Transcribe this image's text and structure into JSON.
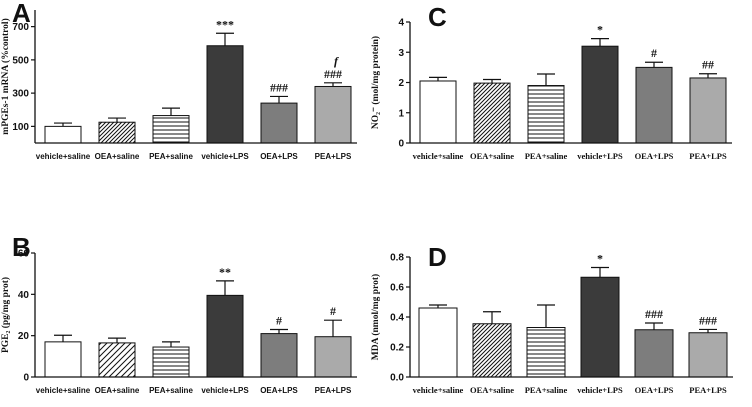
{
  "chart_data": [
    {
      "panel": "A",
      "type": "bar",
      "ylabel": "mPGEs-1 mRNA (%control)",
      "ylim": [
        0,
        800
      ],
      "yticks": [
        100,
        300,
        500,
        700
      ],
      "categories": [
        "vehicle+saline",
        "OEA+saline",
        "PEA+saline",
        "vehicle+LPS",
        "OEA+LPS",
        "PEA+LPS"
      ],
      "values": [
        100,
        125,
        165,
        585,
        240,
        340
      ],
      "errors": [
        20,
        25,
        45,
        75,
        40,
        22
      ],
      "significance": [
        "",
        "",
        "",
        "***",
        "###",
        "###"
      ],
      "extra_marks": [
        "",
        "",
        "",
        "",
        "",
        "f"
      ],
      "fills": [
        "white",
        "diag-dense",
        "horiz",
        "#3b3b3b",
        "#7d7d7d",
        "#aaaaaa"
      ]
    },
    {
      "panel": "C",
      "type": "bar",
      "ylabel": "NO₂⁻ (mol/mg protein)",
      "ylim": [
        0,
        4
      ],
      "yticks": [
        0,
        1,
        2,
        3,
        4
      ],
      "categories": [
        "vehicle+saline",
        "OEA+saline",
        "PEA+saline",
        "vehicle+LPS",
        "OEA+LPS",
        "PEA+LPS"
      ],
      "values": [
        2.05,
        1.98,
        1.9,
        3.2,
        2.5,
        2.15
      ],
      "errors": [
        0.12,
        0.12,
        0.38,
        0.25,
        0.17,
        0.14
      ],
      "significance": [
        "",
        "",
        "",
        "*",
        "#",
        "##"
      ],
      "fills": [
        "white",
        "diag-dense",
        "horiz",
        "#3b3b3b",
        "#7d7d7d",
        "#aaaaaa"
      ]
    },
    {
      "panel": "B",
      "type": "bar",
      "ylabel": "PGE₂ (pg/mg prot)",
      "ylim": [
        0,
        60
      ],
      "yticks": [
        0,
        20,
        40,
        60
      ],
      "categories": [
        "vehicle+saline",
        "OEA+saline",
        "PEA+saline",
        "vehicle+LPS",
        "OEA+LPS",
        "PEA+LPS"
      ],
      "values": [
        17,
        16.5,
        14.5,
        39.5,
        21,
        19.5
      ],
      "errors": [
        3.2,
        2.3,
        2.5,
        7,
        2,
        8
      ],
      "significance": [
        "",
        "",
        "",
        "**",
        "#",
        "#"
      ],
      "fills": [
        "white",
        "diag-sparse",
        "horiz",
        "#3b3b3b",
        "#7d7d7d",
        "#aaaaaa"
      ]
    },
    {
      "panel": "D",
      "type": "bar",
      "ylabel": "MDA (nmol/mg prot)",
      "ylim": [
        0,
        0.8
      ],
      "yticks": [
        0,
        0.2,
        0.4,
        0.6,
        0.8
      ],
      "categories": [
        "vehicle+saline",
        "OEA+saline",
        "PEA+saline",
        "vehicle+LPS",
        "OEA+LPS",
        "PEA+LPS"
      ],
      "values": [
        0.46,
        0.355,
        0.33,
        0.665,
        0.315,
        0.295
      ],
      "errors": [
        0.02,
        0.08,
        0.15,
        0.065,
        0.045,
        0.022
      ],
      "significance": [
        "",
        "",
        "",
        "*",
        "###",
        "###"
      ],
      "fills": [
        "white",
        "diag-dense",
        "horiz",
        "#3b3b3b",
        "#7d7d7d",
        "#aaaaaa"
      ]
    }
  ]
}
